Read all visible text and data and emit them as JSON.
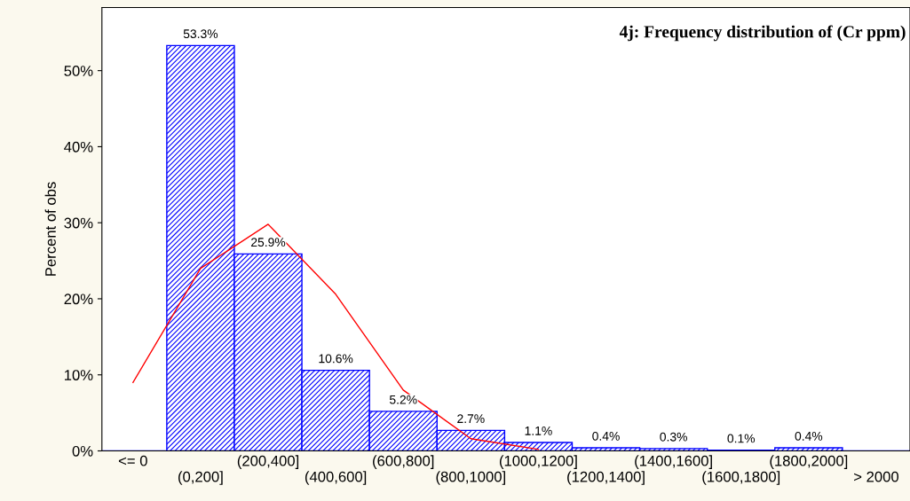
{
  "chart_data": {
    "type": "bar",
    "title": "4j: Frequency distribution of (Cr ppm)",
    "ylabel": "Percent of obs",
    "categories": [
      "<= 0",
      "(0,200]",
      "(200,400]",
      "(400,600]",
      "(600,800]",
      "(800,1000]",
      "(1000,1200]",
      "(1200,1400]",
      "(1400,1600]",
      "(1600,1800]",
      "(1800,2000]",
      "> 2000"
    ],
    "series": [
      {
        "color": "#0000ff",
        "values": [
          0,
          53.3,
          25.9,
          10.6,
          5.2,
          2.7,
          1.1,
          0.4,
          0.3,
          0.1,
          0.4,
          0
        ],
        "value_labels": [
          null,
          "53.3%",
          "25.9%",
          "10.6%",
          "5.2%",
          "2.7%",
          "1.1%",
          "0.4%",
          "0.3%",
          "0.1%",
          "0.4%",
          null
        ]
      },
      {
        "type": "line",
        "color": "#ff0000",
        "values": [
          9,
          24,
          29.8,
          20.6,
          8,
          1.6,
          0.2,
          null,
          null,
          null,
          null,
          null
        ]
      }
    ],
    "ylim": [
      0,
      58.3
    ],
    "yticks": [
      {
        "value": 0,
        "label": "0%"
      },
      {
        "value": 10,
        "label": "10%"
      },
      {
        "value": 20,
        "label": "20%"
      },
      {
        "value": 30,
        "label": "30%"
      },
      {
        "value": 40,
        "label": "40%"
      },
      {
        "value": 50,
        "label": "50%"
      }
    ],
    "grid": false,
    "legend": false
  }
}
